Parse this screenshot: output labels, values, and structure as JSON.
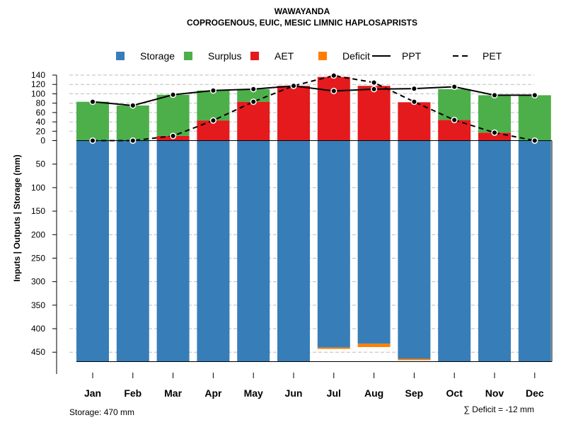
{
  "chart_data": {
    "type": "bar",
    "title": "WAWAYANDA",
    "subtitle": "COPROGENOUS, EUIC, MESIC LIMNIC HAPLOSAPRISTS",
    "ylabel": "Inputs | Outputs | Storage    (mm)",
    "categories": [
      "Jan",
      "Feb",
      "Mar",
      "Apr",
      "May",
      "Jun",
      "Jul",
      "Aug",
      "Sep",
      "Oct",
      "Nov",
      "Dec"
    ],
    "upper_ticks": [
      "140",
      "120",
      "100",
      "80",
      "60",
      "40",
      "20",
      "0"
    ],
    "lower_ticks": [
      "50",
      "100",
      "150",
      "200",
      "250",
      "300",
      "350",
      "400",
      "450"
    ],
    "legend": [
      {
        "name": "Storage",
        "kind": "square",
        "color": "#377EB8"
      },
      {
        "name": "Surplus",
        "kind": "square",
        "color": "#4DAF4A"
      },
      {
        "name": "AET",
        "kind": "square",
        "color": "#E41A1C"
      },
      {
        "name": "Deficit",
        "kind": "square",
        "color": "#FF7F00"
      },
      {
        "name": "PPT",
        "kind": "solid-line",
        "color": "#000000"
      },
      {
        "name": "PET",
        "kind": "dashed-line",
        "color": "#000000"
      }
    ],
    "series": [
      {
        "name": "PPT",
        "values": [
          83,
          75,
          98,
          107,
          110,
          117,
          106,
          110,
          111,
          115,
          97,
          97
        ]
      },
      {
        "name": "PET",
        "values": [
          0,
          0,
          10,
          43,
          83,
          117,
          139,
          124,
          83,
          44,
          17,
          0
        ]
      },
      {
        "name": "AET",
        "values": [
          0,
          0,
          10,
          43,
          83,
          117,
          136,
          117,
          82,
          44,
          17,
          0
        ]
      },
      {
        "name": "Surplus",
        "values": [
          83,
          75,
          88,
          64,
          27,
          0,
          0,
          0,
          0,
          66,
          80,
          97
        ]
      },
      {
        "name": "Storage",
        "values": [
          470,
          470,
          470,
          470,
          470,
          470,
          440,
          432,
          464,
          470,
          470,
          470
        ]
      },
      {
        "name": "Deficit",
        "values": [
          0,
          0,
          0,
          0,
          0,
          0,
          -3,
          -7,
          -2,
          0,
          0,
          0
        ]
      }
    ],
    "storage_capacity": 470,
    "upper_range": [
      0,
      140
    ],
    "lower_range": [
      0,
      470
    ],
    "footer_left": "Storage: 470 mm",
    "footer_right": "∑ Deficit = -12 mm"
  }
}
